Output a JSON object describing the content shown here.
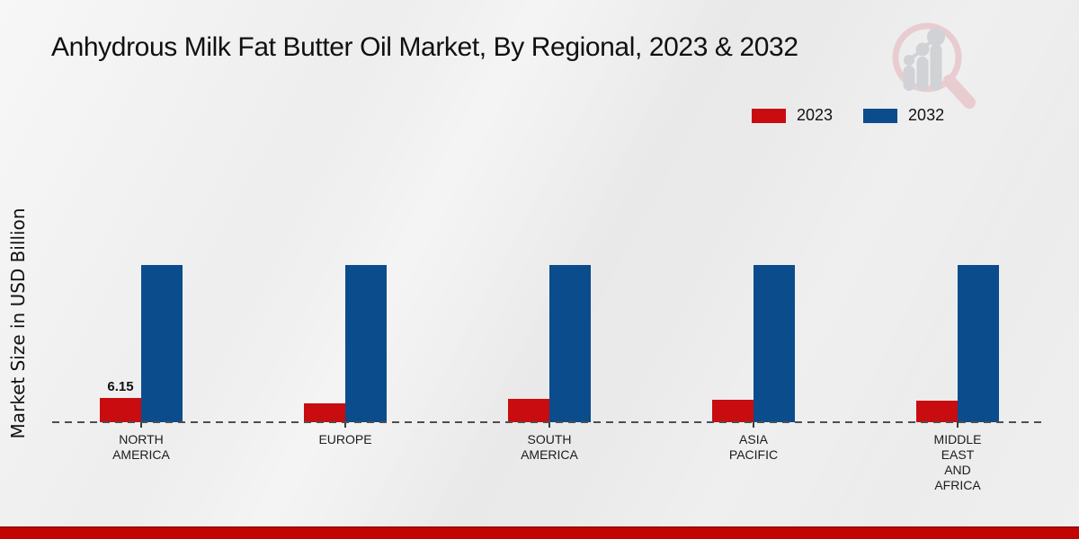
{
  "header": {
    "title": "Anhydrous Milk Fat Butter Oil Market, By Regional, 2023 & 2032"
  },
  "axes": {
    "y_label": "Market Size in USD Billion"
  },
  "legend": {
    "items": [
      {
        "label": "2023",
        "color": "#c90c0f"
      },
      {
        "label": "2032",
        "color": "#0b4c8c"
      }
    ]
  },
  "colors": {
    "series_2023": "#c90c0f",
    "series_2032": "#0b4c8c",
    "baseline": "#4e4e4e",
    "bottom_accent": "#c20502",
    "background": "#eaeaea"
  },
  "chart_data": {
    "type": "bar",
    "title": "Anhydrous Milk Fat Butter Oil Market, By Regional, 2023 & 2032",
    "xlabel": "",
    "ylabel": "Market Size in USD Billion",
    "categories": [
      "NORTH AMERICA",
      "EUROPE",
      "SOUTH AMERICA",
      "ASIA PACIFIC",
      "MIDDLE EAST AND AFRICA"
    ],
    "category_label_lines": [
      [
        "NORTH",
        "AMERICA"
      ],
      [
        "EUROPE"
      ],
      [
        "SOUTH",
        "AMERICA"
      ],
      [
        "ASIA",
        "PACIFIC"
      ],
      [
        "MIDDLE",
        "EAST",
        "AND",
        "AFRICA"
      ]
    ],
    "series": [
      {
        "name": "2023",
        "color": "#c90c0f",
        "values": [
          6.15,
          4.8,
          5.9,
          5.7,
          5.5
        ]
      },
      {
        "name": "2032",
        "color": "#0b4c8c",
        "values": [
          39.9,
          39.9,
          39.9,
          39.9,
          39.9
        ]
      }
    ],
    "data_labels": {
      "series": "2023",
      "values": [
        "6.15",
        null,
        null,
        null,
        null
      ]
    },
    "ylim": [
      0,
      45
    ],
    "grid": false,
    "legend_position": "top-right",
    "baseline_style": "dashed"
  }
}
